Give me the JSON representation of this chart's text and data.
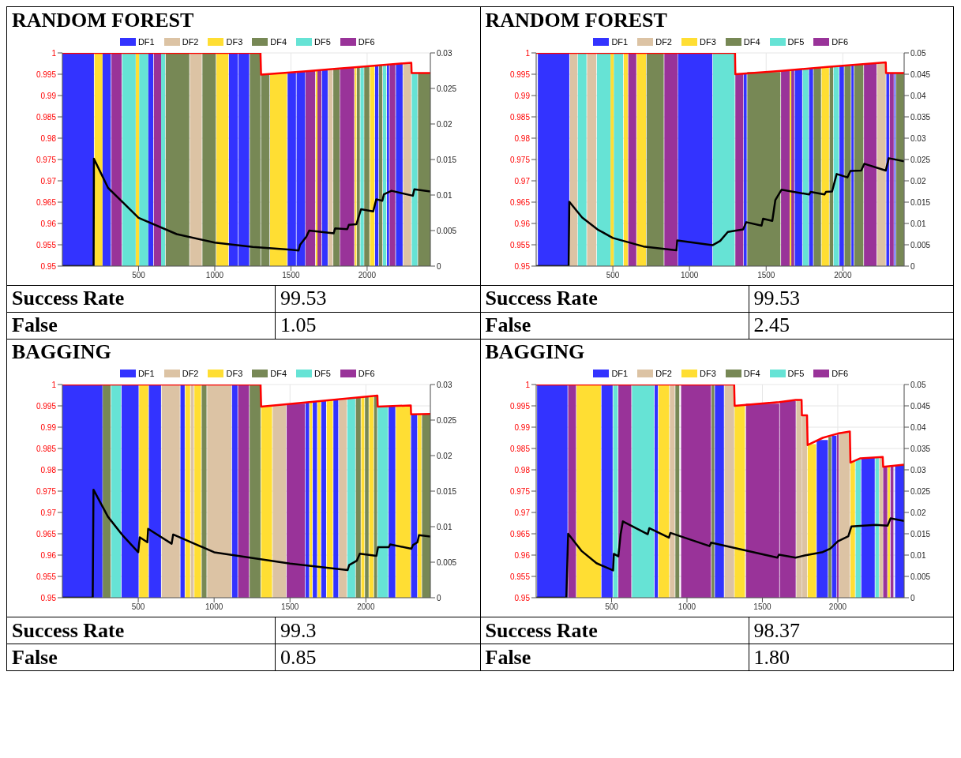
{
  "chart_data": [
    {
      "type": "area",
      "title": "RANDOM FOREST",
      "xlim": [
        0,
        2415
      ],
      "xticks": [
        500,
        1000,
        1500,
        2000
      ],
      "ylim": [
        0.95,
        1
      ],
      "yticks": [
        0.95,
        0.955,
        0.96,
        0.965,
        0.97,
        0.975,
        0.98,
        0.985,
        0.99,
        0.995,
        1
      ],
      "y2lim": [
        0,
        0.03
      ],
      "y2ticks": [
        0,
        0.005,
        0.01,
        0.015,
        0.02,
        0.025,
        0.03
      ],
      "grid": true,
      "legend": "top",
      "annotations": [
        "Success Rate",
        "99.53",
        "False",
        "1.05"
      ],
      "series": [
        {
          "name": "DF1",
          "color": "#3333ff",
          "x": [
            0,
            207,
            263,
            318,
            563,
            596,
            1093,
            1152,
            1156,
            1226,
            1478,
            1533,
            1537,
            1593,
            1704,
            1741,
            2052,
            2074,
            2130,
            2144,
            2189,
            2233
          ],
          "values": [
            1,
            1,
            1,
            1,
            1,
            1,
            1,
            1,
            1,
            1,
            0.9955,
            0.9955,
            0.9956,
            0.9956,
            0.9961,
            0.9961,
            0.9971,
            0.9971,
            0.9973,
            0.9973,
            0.9975,
            0.9975
          ]
        },
        {
          "name": "DF2",
          "color": "#dcc3a4",
          "x": [
            837,
            915,
            1744,
            1774,
            2237,
            2289
          ],
          "values": [
            1,
            1,
            0.9962,
            0.9962,
            0.9976,
            0.9976
          ]
        },
        {
          "name": "DF3",
          "color": "#ffde33",
          "x": [
            211,
            263,
            481,
            504,
            1011,
            1089,
            1363,
            1474,
            1663,
            1674,
            1919,
            1930,
            2019,
            2048
          ],
          "values": [
            1,
            1,
            1,
            1,
            1,
            1,
            0.9952,
            0.9952,
            0.9959,
            0.9959,
            0.9966,
            0.9966,
            0.997,
            0.997
          ]
        },
        {
          "name": "DF4",
          "color": "#778855",
          "x": [
            678,
            833,
            919,
            1007,
            1230,
            1300,
            1304,
            1359,
            1778,
            1819,
            1933,
            1952,
            1981,
            2015,
            2078,
            2100,
            2334,
            2415
          ],
          "values": [
            1,
            1,
            1,
            1,
            1,
            1,
            0.995,
            0.995,
            0.9963,
            0.9963,
            0.9967,
            0.9967,
            0.9969,
            0.9969,
            0.9971,
            0.9971,
            0.9953,
            0.9953
          ]
        },
        {
          "name": "DF5",
          "color": "#66e3d5",
          "x": [
            393,
            481,
            504,
            563,
            648,
            674,
            1956,
            1978,
            2104,
            2126,
            2293,
            2330
          ],
          "values": [
            1,
            1,
            1,
            1,
            1,
            1,
            0.9968,
            0.9968,
            0.9972,
            0.9972,
            0.9953,
            0.9953
          ]
        },
        {
          "name": "DF6",
          "color": "#993399",
          "x": [
            322,
            389,
            600,
            648,
            1596,
            1659,
            1674,
            1700,
            1822,
            1915,
            2148,
            2185
          ],
          "values": [
            1,
            1,
            1,
            1,
            0.9958,
            0.9958,
            0.996,
            0.996,
            0.9965,
            0.9965,
            0.9974,
            0.9974
          ]
        },
        {
          "type": "line",
          "color": "#ff0000",
          "x": [
            0,
            1300,
            1304,
            1600,
            1800,
            1950,
            2290,
            2292,
            2415
          ],
          "values": [
            1,
            1,
            0.9949,
            0.9957,
            0.9963,
            0.9967,
            0.9977,
            0.9953,
            0.9953
          ]
        },
        {
          "type": "line",
          "axis": "y2",
          "color": "#000000",
          "x": [
            0,
            205,
            207,
            300,
            400,
            500,
            750,
            1000,
            1250,
            1500,
            1550,
            1560,
            1600,
            1620,
            1780,
            1790,
            1870,
            1880,
            1930,
            1960,
            2040,
            2060,
            2100,
            2110,
            2160,
            2300,
            2310,
            2415
          ],
          "values": [
            0,
            0,
            0.0151,
            0.011,
            0.0089,
            0.0068,
            0.0045,
            0.0033,
            0.0027,
            0.0023,
            0.0022,
            0.003,
            0.0041,
            0.005,
            0.0046,
            0.0053,
            0.0052,
            0.0058,
            0.0059,
            0.008,
            0.0077,
            0.0094,
            0.0092,
            0.0101,
            0.0106,
            0.0099,
            0.0108,
            0.0105
          ]
        }
      ]
    },
    {
      "type": "area",
      "title": "RANDOM FOREST",
      "xlim": [
        0,
        2400
      ],
      "xticks": [
        500,
        1000,
        1500,
        2000
      ],
      "ylim": [
        0.95,
        1
      ],
      "yticks": [
        0.95,
        0.955,
        0.96,
        0.965,
        0.97,
        0.975,
        0.98,
        0.985,
        0.99,
        0.995,
        1
      ],
      "y2lim": [
        0,
        0.05
      ],
      "y2ticks": [
        0,
        0.005,
        0.01,
        0.015,
        0.02,
        0.025,
        0.03,
        0.035,
        0.04,
        0.045,
        0.05
      ],
      "grid": true,
      "legend": "top",
      "annotations": [
        "Success Rate",
        "99.53",
        "False",
        "2.45"
      ],
      "series": [
        {
          "name": "DF1",
          "color": "#3333ff",
          "x": [
            11,
            216,
            925,
            1149,
            1354,
            1373,
            1687,
            1735,
            1780,
            1806,
            1978,
            2007,
            2056,
            2071,
            2284,
            2302,
            2336,
            2343
          ],
          "values": [
            1,
            1,
            1,
            1,
            0.9952,
            0.9952,
            0.9962,
            0.9962,
            0.9964,
            0.9964,
            0.9969,
            0.9969,
            0.9971,
            0.9971,
            0.9953,
            0.9953,
            0.9953,
            0.9953
          ]
        },
        {
          "name": "DF2",
          "color": "#dcc3a4",
          "x": [
            220,
            269,
            332,
            392,
            2224,
            2280
          ],
          "values": [
            1,
            1,
            1,
            1,
            0.9976,
            0.9976
          ]
        },
        {
          "name": "DF3",
          "color": "#ffde33",
          "x": [
            485,
            507,
            571,
            597,
            657,
            716,
            1653,
            1664,
            1862,
            1910
          ],
          "values": [
            1,
            1,
            1,
            1,
            1,
            1,
            0.996,
            0.996,
            0.9966,
            0.9966
          ]
        },
        {
          "name": "DF4",
          "color": "#778855",
          "x": [
            720,
            832,
            1377,
            1593,
            1810,
            1858,
            1914,
            1937,
            2011,
            2052,
            2075,
            2134,
            2347,
            2399
          ],
          "values": [
            1,
            1,
            0.9955,
            0.9955,
            0.9965,
            0.9965,
            0.9968,
            0.9968,
            0.997,
            0.997,
            0.9972,
            0.9972,
            0.9953,
            0.9953
          ]
        },
        {
          "name": "DF5",
          "color": "#66e3d5",
          "x": [
            272,
            328,
            396,
            485,
            507,
            567,
            1153,
            1295,
            1739,
            1776,
            1940,
            1974
          ],
          "values": [
            1,
            1,
            1,
            1,
            1,
            1,
            1,
            1,
            0.9963,
            0.9963,
            0.9968,
            0.9968
          ]
        },
        {
          "name": "DF6",
          "color": "#993399",
          "x": [
            601,
            653,
            836,
            922,
            1299,
            1351,
            1597,
            1653,
            1664,
            1683,
            2138,
            2220,
            2306,
            2332
          ],
          "values": [
            1,
            1,
            1,
            1,
            0.9951,
            0.9951,
            0.9959,
            0.9959,
            0.9961,
            0.9961,
            0.9974,
            0.9974,
            0.9953,
            0.9953
          ]
        },
        {
          "type": "line",
          "color": "#ff0000",
          "x": [
            0,
            1297,
            1299,
            1600,
            1900,
            2280,
            2282,
            2400
          ],
          "values": [
            1,
            1,
            0.995,
            0.9958,
            0.9967,
            0.9978,
            0.9953,
            0.9953
          ]
        },
        {
          "type": "line",
          "axis": "y2",
          "color": "#000000",
          "x": [
            0,
            212,
            216,
            300,
            400,
            500,
            700,
            915,
            920,
            1150,
            1200,
            1250,
            1350,
            1370,
            1470,
            1480,
            1540,
            1560,
            1600,
            1780,
            1790,
            1880,
            1890,
            1930,
            1960,
            2030,
            2050,
            2120,
            2140,
            2280,
            2300,
            2400
          ],
          "values": [
            0,
            0,
            0.0151,
            0.0114,
            0.0086,
            0.0066,
            0.0046,
            0.0037,
            0.006,
            0.0049,
            0.0059,
            0.008,
            0.0086,
            0.0103,
            0.0095,
            0.0111,
            0.0106,
            0.0155,
            0.0179,
            0.0168,
            0.0174,
            0.0168,
            0.0174,
            0.0175,
            0.0216,
            0.0208,
            0.0223,
            0.0224,
            0.024,
            0.0224,
            0.0253,
            0.0246
          ]
        }
      ]
    },
    {
      "type": "area",
      "title": "BAGGING",
      "xlim": [
        0,
        2425
      ],
      "xticks": [
        500,
        1000,
        1500,
        2000
      ],
      "ylim": [
        0.95,
        1
      ],
      "yticks": [
        0.95,
        0.955,
        0.96,
        0.965,
        0.97,
        0.975,
        0.98,
        0.985,
        0.99,
        0.995,
        1
      ],
      "y2lim": [
        0,
        0.03
      ],
      "y2ticks": [
        0,
        0.005,
        0.01,
        0.015,
        0.02,
        0.025,
        0.03
      ],
      "grid": true,
      "legend": "top",
      "annotations": [
        "Success Rate",
        "99.3",
        "False",
        "0.85"
      ],
      "series": [
        {
          "name": "DF1",
          "color": "#3333ff",
          "x": [
            0,
            264,
            390,
            502,
            570,
            650,
            778,
            806,
            1118,
            1154,
            1602,
            1626,
            1650,
            1678,
            1706,
            1738,
            1786,
            1818,
            2150,
            2194,
            2298,
            2338
          ],
          "values": [
            1,
            1,
            1,
            1,
            1,
            1,
            1,
            1,
            1,
            1,
            0.9958,
            0.9958,
            0.996,
            0.996,
            0.9962,
            0.9962,
            0.9965,
            0.9965,
            0.995,
            0.995,
            0.993,
            0.993
          ]
        },
        {
          "name": "DF2",
          "color": "#dcc3a4",
          "x": [
            654,
            774,
            846,
            866,
            954,
            1114,
            1386,
            1474,
            1822,
            1874
          ],
          "values": [
            1,
            1,
            1,
            1,
            1,
            1,
            0.9952,
            0.9952,
            0.9967,
            0.9967
          ]
        },
        {
          "name": "DF3",
          "color": "#ffde33",
          "x": [
            506,
            566,
            810,
            842,
            870,
            914,
            1310,
            1382,
            1630,
            1646,
            1682,
            1702,
            1742,
            1782,
            1970,
            1990,
            2022,
            2050,
            2198,
            2294,
            2342,
            2366
          ],
          "values": [
            1,
            1,
            1,
            1,
            1,
            1,
            0.9949,
            0.9949,
            0.9959,
            0.9959,
            0.9961,
            0.9961,
            0.9963,
            0.9963,
            0.9971,
            0.9971,
            0.9973,
            0.9973,
            0.9951,
            0.9951,
            0.993,
            0.993
          ]
        },
        {
          "name": "DF4",
          "color": "#778855",
          "x": [
            266,
            318,
            918,
            950,
            1234,
            1306,
            1934,
            1966,
            1994,
            2018,
            2054,
            2074,
            2370,
            2425
          ],
          "values": [
            1,
            1,
            1,
            1,
            1,
            1,
            0.997,
            0.997,
            0.9972,
            0.9972,
            0.9974,
            0.9974,
            0.9931,
            0.9931
          ]
        },
        {
          "name": "DF5",
          "color": "#66e3d5",
          "x": [
            322,
            386,
            1878,
            1930,
            2078,
            2146
          ],
          "values": [
            1,
            1,
            0.9968,
            0.9968,
            0.9948,
            0.9948
          ]
        },
        {
          "name": "DF6",
          "color": "#993399",
          "x": [
            1158,
            1230,
            1478,
            1598
          ],
          "values": [
            1,
            1,
            0.9955,
            0.9955
          ]
        },
        {
          "type": "line",
          "color": "#ff0000",
          "x": [
            0,
            1306,
            1310,
            1600,
            1900,
            2076,
            2078,
            2296,
            2298,
            2425
          ],
          "values": [
            1,
            1,
            0.9948,
            0.9958,
            0.9968,
            0.9974,
            0.9948,
            0.9951,
            0.993,
            0.9931
          ]
        },
        {
          "type": "line",
          "axis": "y2",
          "color": "#000000",
          "x": [
            0,
            200,
            205,
            300,
            400,
            500,
            510,
            560,
            565,
            720,
            730,
            1000,
            1500,
            1880,
            1890,
            1940,
            1960,
            2070,
            2080,
            2150,
            2160,
            2300,
            2310,
            2340,
            2350,
            2425
          ],
          "values": [
            0,
            0,
            0.0152,
            0.0114,
            0.0087,
            0.0064,
            0.0085,
            0.0078,
            0.0097,
            0.0076,
            0.0089,
            0.0064,
            0.0048,
            0.0039,
            0.0046,
            0.0052,
            0.0062,
            0.0059,
            0.0071,
            0.0071,
            0.0075,
            0.0069,
            0.0074,
            0.0078,
            0.0088,
            0.0086
          ]
        }
      ]
    },
    {
      "type": "area",
      "title": "BAGGING",
      "xlim": [
        0,
        2440
      ],
      "xticks": [
        500,
        1000,
        1500,
        2000
      ],
      "ylim": [
        0.95,
        1
      ],
      "yticks": [
        0.95,
        0.955,
        0.96,
        0.965,
        0.97,
        0.975,
        0.98,
        0.985,
        0.99,
        0.995,
        1
      ],
      "y2lim": [
        0,
        0.05
      ],
      "y2ticks": [
        0,
        0.005,
        0.01,
        0.015,
        0.02,
        0.025,
        0.03,
        0.035,
        0.04,
        0.045,
        0.05
      ],
      "grid": true,
      "legend": "top",
      "annotations": [
        "Success Rate",
        "98.37",
        "False",
        "1.80"
      ],
      "series": [
        {
          "name": "DF1",
          "color": "#3333ff",
          "x": [
            6,
            208,
            433,
            507,
            785,
            807,
            1185,
            1245,
            1860,
            1934,
            1961,
            1991,
            2156,
            2245,
            2380,
            2440
          ],
          "values": [
            1,
            1,
            1,
            1,
            1,
            1,
            1,
            1,
            0.987,
            0.987,
            0.988,
            0.988,
            0.9828,
            0.9828,
            0.9811,
            0.9811
          ]
        },
        {
          "name": "DF2",
          "color": "#dcc3a4",
          "x": [
            886,
            919,
            1249,
            1313,
            1725,
            1760,
            1762,
            1796,
            2009,
            2080,
            2275,
            2298
          ],
          "values": [
            1,
            1,
            1,
            1,
            0.9964,
            0.9964,
            0.9928,
            0.9928,
            0.9888,
            0.9888,
            0.9829,
            0.9829
          ]
        },
        {
          "name": "DF3",
          "color": "#ffde33",
          "x": [
            268,
            429,
            811,
            882,
            1316,
            1384,
            1800,
            1856,
            2084,
            2114,
            2331,
            2346
          ],
          "values": [
            1,
            1,
            1,
            1,
            0.9951,
            0.9951,
            0.986,
            0.986,
            0.982,
            0.982,
            0.9808,
            0.9808
          ]
        },
        {
          "name": "DF4",
          "color": "#778855",
          "x": [
            923,
            949,
            1163,
            1181,
            1938,
            1957
          ],
          "values": [
            1,
            1,
            1,
            1,
            0.9877,
            0.9877
          ]
        },
        {
          "name": "DF5",
          "color": "#66e3d5",
          "x": [
            511,
            541,
            635,
            781,
            2118,
            2152,
            2249,
            2272
          ],
          "values": [
            1,
            1,
            1,
            1,
            0.9824,
            0.9824,
            0.9829,
            0.9829
          ]
        },
        {
          "name": "DF6",
          "color": "#993399",
          "x": [
            212,
            264,
            545,
            631,
            961,
            1159,
            1391,
            1612,
            1616,
            1721,
            1994,
            2006,
            2301,
            2328,
            2350,
            2369
          ],
          "values": [
            1,
            1,
            1,
            1,
            1,
            1,
            0.9955,
            0.9955,
            0.9961,
            0.9961,
            0.9883,
            0.9883,
            0.9808,
            0.9808,
            0.9809,
            0.9809
          ]
        },
        {
          "type": "line",
          "color": "#ff0000",
          "x": [
            0,
            1313,
            1316,
            1612,
            1721,
            1760,
            1762,
            1796,
            1800,
            1900,
            2000,
            2080,
            2084,
            2150,
            2298,
            2301,
            2440
          ],
          "values": [
            1,
            1,
            0.995,
            0.9959,
            0.9964,
            0.9964,
            0.9928,
            0.9928,
            0.9858,
            0.9875,
            0.9885,
            0.989,
            0.9817,
            0.9827,
            0.983,
            0.9807,
            0.9812
          ]
        },
        {
          "type": "line",
          "axis": "y2",
          "color": "#000000",
          "x": [
            0,
            200,
            212,
            300,
            400,
            510,
            515,
            545,
            560,
            575,
            740,
            750,
            880,
            890,
            1150,
            1160,
            1600,
            1610,
            1720,
            1780,
            1900,
            1950,
            2000,
            2070,
            2090,
            2250,
            2330,
            2350,
            2440
          ],
          "values": [
            0,
            0,
            0.015,
            0.011,
            0.0081,
            0.0064,
            0.0103,
            0.0097,
            0.0149,
            0.0179,
            0.0149,
            0.0163,
            0.0141,
            0.0152,
            0.0121,
            0.0129,
            0.0094,
            0.0101,
            0.0094,
            0.0099,
            0.0107,
            0.0115,
            0.0132,
            0.0144,
            0.0167,
            0.0171,
            0.0169,
            0.0186,
            0.018
          ]
        }
      ]
    }
  ]
}
